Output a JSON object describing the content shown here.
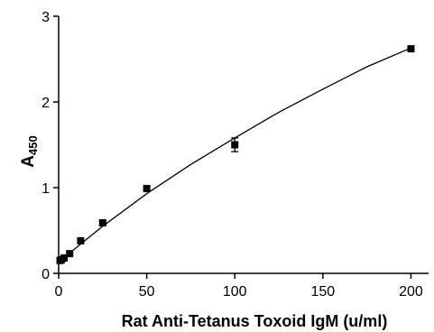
{
  "chart_data": {
    "type": "scatter",
    "xlabel": "Rat Anti-Tetanus Toxoid IgM (u/ml)",
    "ylabel_main": "A",
    "ylabel_sub": "450",
    "xlim": [
      0,
      210
    ],
    "ylim": [
      0,
      3
    ],
    "xticks": [
      0,
      50,
      100,
      150,
      200
    ],
    "yticks": [
      0,
      1,
      2,
      3
    ],
    "grid": false,
    "series": [
      {
        "marker": "square",
        "color": "#000000",
        "x": [
          0.78,
          1.56,
          3.13,
          6.25,
          12.5,
          25,
          50,
          100,
          200
        ],
        "y": [
          0.15,
          0.16,
          0.18,
          0.23,
          0.38,
          0.59,
          0.99,
          1.5,
          2.62
        ],
        "error": [
          0,
          0,
          0,
          0,
          0,
          0.02,
          0,
          0.08,
          0
        ]
      }
    ],
    "fit_curve": {
      "x": [
        0,
        10,
        25,
        50,
        75,
        100,
        125,
        150,
        175,
        200
      ],
      "y": [
        0.13,
        0.3,
        0.55,
        0.93,
        1.27,
        1.58,
        1.88,
        2.15,
        2.41,
        2.63
      ]
    }
  }
}
